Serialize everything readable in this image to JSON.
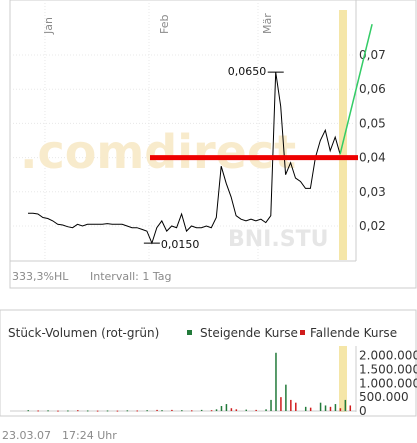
{
  "chart_data": [
    {
      "type": "line",
      "x_labels": [
        "Jan",
        "Feb",
        "Mär"
      ],
      "ylim": [
        0.0,
        0.075
      ],
      "y_ticks": [
        0.02,
        0.03,
        0.04,
        0.05,
        0.06,
        0.07
      ],
      "y_tick_labels": [
        "0,02",
        "0,03",
        "0,04",
        "0,05",
        "0,06",
        "0,07"
      ],
      "grid": true,
      "series": [
        {
          "color": "#000000",
          "values": [
            0.0237,
            0.0237,
            0.0235,
            0.0225,
            0.0222,
            0.0215,
            0.0205,
            0.0203,
            0.0198,
            0.0195,
            0.0205,
            0.02,
            0.0205,
            0.0205,
            0.0205,
            0.0205,
            0.0207,
            0.0205,
            0.0205,
            0.0205,
            0.02,
            0.0195,
            0.0195,
            0.019,
            0.0185,
            0.015,
            0.0195,
            0.0215,
            0.0185,
            0.02,
            0.0195,
            0.0235,
            0.0185,
            0.02,
            0.0195,
            0.0195,
            0.02,
            0.0195,
            0.0225,
            0.0375,
            0.0325,
            0.0285,
            0.023,
            0.022,
            0.0215,
            0.022,
            0.0215,
            0.022,
            0.021,
            0.023,
            0.065,
            0.055,
            0.035,
            0.0385,
            0.034,
            0.033,
            0.031,
            0.031,
            0.04,
            0.045,
            0.048,
            0.042,
            0.046,
            0.041
          ]
        },
        {
          "color": "#33cc66",
          "values": [
            0.041,
            0.06,
            0.079
          ]
        }
      ],
      "annotations": [
        {
          "label": "0,0650",
          "value": 0.065
        },
        {
          "label": "0,0150",
          "value": 0.015
        }
      ],
      "reference_line": {
        "value": 0.04,
        "color": "#ee0000"
      },
      "highlight_color": "#f5e6a8",
      "watermark": {
        "brand": ".comdirect",
        "symbol": "BNI.STU"
      },
      "footer": {
        "scale": "333,3%HL",
        "interval": "Intervall: 1 Tag"
      }
    },
    {
      "type": "bar",
      "title": "Stück-Volumen (rot-grün)",
      "legend": [
        {
          "name": "Steigende Kurse",
          "color": "#227a3a"
        },
        {
          "name": "Fallende Kurse",
          "color": "#d01c1c"
        }
      ],
      "ylim": [
        0,
        2200000
      ],
      "y_ticks": [
        0,
        500000,
        1000000,
        1500000,
        2000000
      ],
      "y_tick_labels": [
        "0",
        "500.000",
        "1.000.000",
        "1.500.000",
        "2.000.000"
      ],
      "bars": [
        {
          "i": 0,
          "value": 30000,
          "dir": "up"
        },
        {
          "i": 2,
          "value": 20000,
          "dir": "down"
        },
        {
          "i": 4,
          "value": 25000,
          "dir": "up"
        },
        {
          "i": 6,
          "value": 15000,
          "dir": "down"
        },
        {
          "i": 8,
          "value": 20000,
          "dir": "up"
        },
        {
          "i": 10,
          "value": 30000,
          "dir": "down"
        },
        {
          "i": 12,
          "value": 20000,
          "dir": "up"
        },
        {
          "i": 14,
          "value": 15000,
          "dir": "down"
        },
        {
          "i": 16,
          "value": 20000,
          "dir": "up"
        },
        {
          "i": 18,
          "value": 15000,
          "dir": "down"
        },
        {
          "i": 20,
          "value": 25000,
          "dir": "up"
        },
        {
          "i": 22,
          "value": 20000,
          "dir": "down"
        },
        {
          "i": 24,
          "value": 30000,
          "dir": "up"
        },
        {
          "i": 26,
          "value": 40000,
          "dir": "down"
        },
        {
          "i": 27,
          "value": 30000,
          "dir": "up"
        },
        {
          "i": 29,
          "value": 40000,
          "dir": "down"
        },
        {
          "i": 31,
          "value": 30000,
          "dir": "up"
        },
        {
          "i": 33,
          "value": 25000,
          "dir": "down"
        },
        {
          "i": 35,
          "value": 40000,
          "dir": "up"
        },
        {
          "i": 37,
          "value": 30000,
          "dir": "down"
        },
        {
          "i": 38,
          "value": 60000,
          "dir": "up"
        },
        {
          "i": 39,
          "value": 180000,
          "dir": "up"
        },
        {
          "i": 40,
          "value": 250000,
          "dir": "up"
        },
        {
          "i": 41,
          "value": 100000,
          "dir": "down"
        },
        {
          "i": 42,
          "value": 60000,
          "dir": "down"
        },
        {
          "i": 44,
          "value": 50000,
          "dir": "up"
        },
        {
          "i": 46,
          "value": 40000,
          "dir": "down"
        },
        {
          "i": 48,
          "value": 60000,
          "dir": "up"
        },
        {
          "i": 49,
          "value": 400000,
          "dir": "up"
        },
        {
          "i": 50,
          "value": 2100000,
          "dir": "up"
        },
        {
          "i": 51,
          "value": 500000,
          "dir": "down"
        },
        {
          "i": 52,
          "value": 950000,
          "dir": "up"
        },
        {
          "i": 53,
          "value": 400000,
          "dir": "down"
        },
        {
          "i": 54,
          "value": 300000,
          "dir": "down"
        },
        {
          "i": 56,
          "value": 150000,
          "dir": "up"
        },
        {
          "i": 57,
          "value": 120000,
          "dir": "down"
        },
        {
          "i": 59,
          "value": 300000,
          "dir": "up"
        },
        {
          "i": 60,
          "value": 200000,
          "dir": "up"
        },
        {
          "i": 61,
          "value": 150000,
          "dir": "down"
        },
        {
          "i": 62,
          "value": 250000,
          "dir": "up"
        },
        {
          "i": 63,
          "value": 100000,
          "dir": "down"
        },
        {
          "i": 64,
          "value": 400000,
          "dir": "up"
        },
        {
          "i": 65,
          "value": 200000,
          "dir": "down"
        }
      ],
      "highlight_color": "#f5e6a8"
    }
  ],
  "timestamp": {
    "date": "23.03.07",
    "time": "17:24 Uhr"
  }
}
